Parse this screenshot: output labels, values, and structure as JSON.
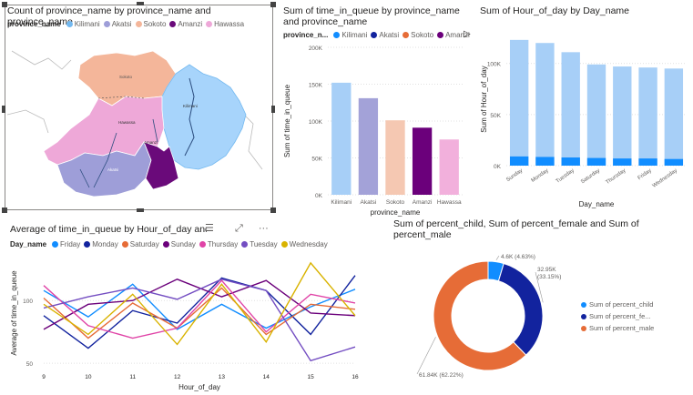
{
  "map_visual": {
    "title": "Count of province_name by province_name and province_name",
    "legend_title": "province_name",
    "legend": [
      {
        "name": "Kilimani",
        "color": "#74b9f0"
      },
      {
        "name": "Akatsi",
        "color": "#9e9ed8"
      },
      {
        "name": "Sokoto",
        "color": "#f4b69a"
      },
      {
        "name": "Amanzi",
        "color": "#6a0a7a"
      },
      {
        "name": "Hawassa",
        "color": "#eea8d8"
      }
    ],
    "region_labels": {
      "sokoto": "Sokoto",
      "hawassa": "Hawassa",
      "kilimani": "Kilimani",
      "akatsi": "Akatsi",
      "amanzi": "Amanzi"
    }
  },
  "queue_chart": {
    "title": "Sum of time_in_queue by province_name and province_name",
    "legend_title": "province_n...",
    "legend": [
      {
        "name": "Kilimani",
        "color": "#118dff"
      },
      {
        "name": "Akatsi",
        "color": "#12239e"
      },
      {
        "name": "Sokoto",
        "color": "#e66c37"
      },
      {
        "name": "Amanzi",
        "color": "#6b007b"
      }
    ],
    "chart_data": {
      "type": "bar",
      "categories": [
        "Kilimani",
        "Akatsi",
        "Sokoto",
        "Amanzi",
        "Hawassa"
      ],
      "values": [
        152000,
        131000,
        101000,
        91000,
        75000
      ],
      "colors": [
        "#a7cff7",
        "#a3a2d8",
        "#f5c8b2",
        "#6b007b",
        "#f2b0dc"
      ],
      "xlabel": "province_name",
      "ylabel": "Sum of time_in_queue",
      "yticks": [
        "0K",
        "50K",
        "100K",
        "150K",
        "200K"
      ],
      "ylim": [
        0,
        200000
      ]
    }
  },
  "hour_chart": {
    "title": "Sum of Hour_of_day by Day_name",
    "chart_data": {
      "type": "bar",
      "categories": [
        "Sunday",
        "Monday",
        "Tuesday",
        "Saturday",
        "Thursday",
        "Friday",
        "Wednesday"
      ],
      "values": [
        123000,
        120000,
        111000,
        99000,
        97000,
        96000,
        95000
      ],
      "bottom_values": [
        9000,
        8500,
        8000,
        7500,
        7000,
        7000,
        6500
      ],
      "xlabel": "Day_name",
      "ylabel": "Sum of Hour_of_day",
      "yticks": [
        "0K",
        "50K",
        "100K"
      ],
      "ylim": [
        0,
        130000
      ],
      "colors": {
        "main": "#a7cff7",
        "bottom": "#118dff"
      }
    }
  },
  "line_chart": {
    "title": "Average of time_in_queue by Hour_of_day and D",
    "legend_title": "Day_name",
    "toolbar": {
      "filter": "☰",
      "focus": "⤢",
      "more": "···"
    },
    "chart_data": {
      "type": "line",
      "x": [
        9,
        10,
        11,
        12,
        13,
        14,
        15,
        16
      ],
      "xlabel": "Hour_of_day",
      "ylabel": "Average of time_in_queue",
      "yticks": [
        "50",
        "100"
      ],
      "ylim": [
        45,
        135
      ],
      "series": [
        {
          "name": "Friday",
          "color": "#118dff",
          "values": [
            108,
            87,
            113,
            77,
            97,
            78,
            95,
            109
          ]
        },
        {
          "name": "Monday",
          "color": "#12239e",
          "values": [
            88,
            62,
            92,
            82,
            118,
            108,
            73,
            120
          ]
        },
        {
          "name": "Saturday",
          "color": "#e66c37",
          "values": [
            102,
            70,
            98,
            78,
            110,
            73,
            97,
            93
          ]
        },
        {
          "name": "Sunday",
          "color": "#6b007b",
          "values": [
            77,
            97,
            100,
            117,
            103,
            116,
            90,
            88
          ]
        },
        {
          "name": "Thursday",
          "color": "#e044a7",
          "values": [
            112,
            80,
            70,
            78,
            116,
            75,
            105,
            98
          ]
        },
        {
          "name": "Tuesday",
          "color": "#744ec2",
          "values": [
            94,
            103,
            110,
            101,
            117,
            108,
            52,
            63
          ]
        },
        {
          "name": "Wednesday",
          "color": "#d9b300",
          "values": [
            97,
            73,
            105,
            65,
            113,
            67,
            130,
            88
          ]
        }
      ]
    }
  },
  "donut_chart": {
    "title": "Sum of percent_child, Sum of percent_female and Sum of percent_male",
    "legend": [
      {
        "name": "Sum of percent_child",
        "color": "#118dff"
      },
      {
        "name": "Sum of percent_fe...",
        "color": "#12239e"
      },
      {
        "name": "Sum of percent_male",
        "color": "#e66c37"
      }
    ],
    "chart_data": {
      "type": "pie",
      "labels": [
        "Sum of percent_child",
        "Sum of percent_female",
        "Sum of percent_male"
      ],
      "values": [
        4.6,
        32.95,
        61.84
      ],
      "percents": [
        4.63,
        33.15,
        62.22
      ],
      "data_labels": [
        "4.6K (4.63%)",
        "32.95K (33.15%)",
        "61.84K (62.22%)"
      ],
      "colors": [
        "#118dff",
        "#12239e",
        "#e66c37"
      ]
    }
  }
}
